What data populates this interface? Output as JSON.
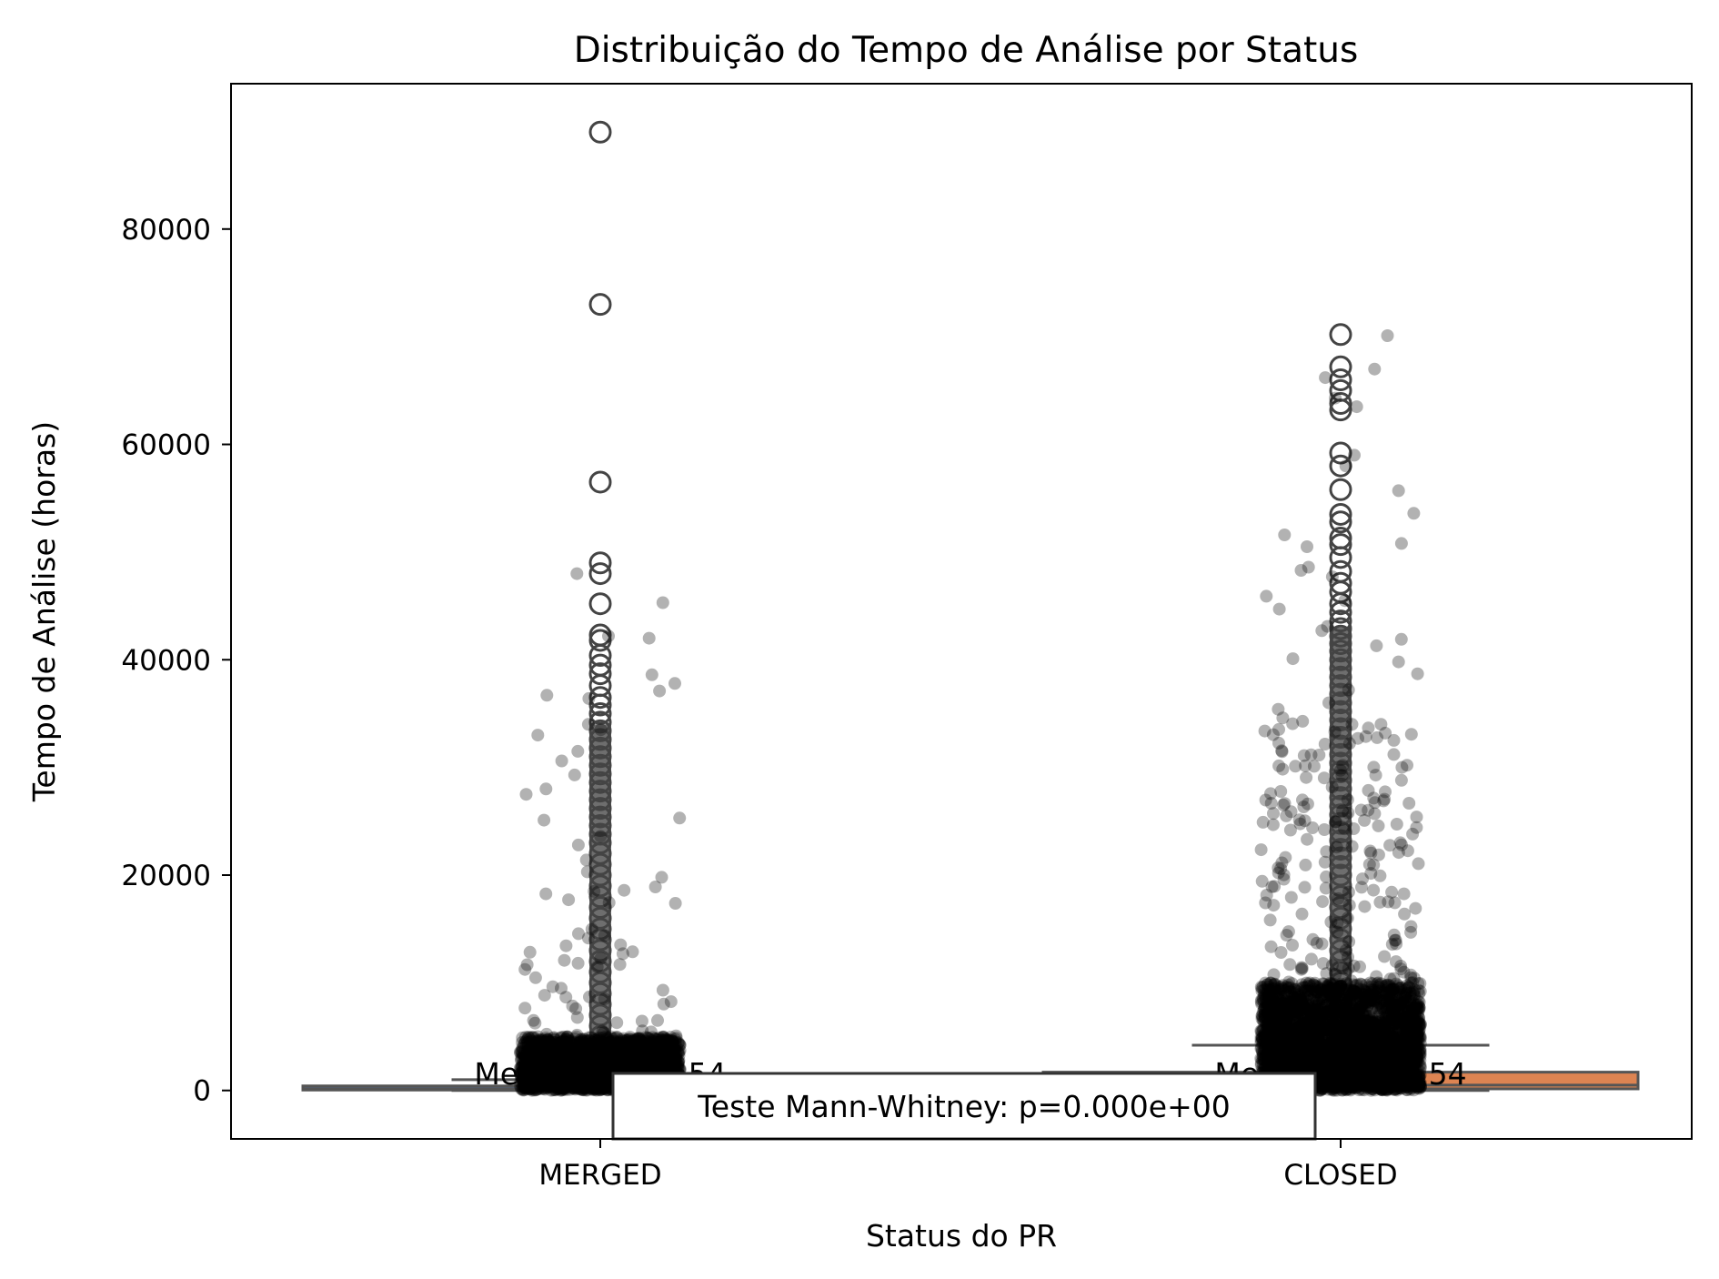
{
  "chart_data": {
    "type": "box",
    "title": "Distribuição do Tempo de Análise por Status",
    "xlabel": "Status do PR",
    "ylabel": "Tempo de Análise (horas)",
    "categories": [
      "MERGED",
      "CLOSED"
    ],
    "ylim": [
      -4500,
      93500
    ],
    "yticks": [
      0,
      20000,
      40000,
      60000,
      80000
    ],
    "grid": false,
    "box_colors": [
      "#4c72b0",
      "#dd8452"
    ],
    "boxes": [
      {
        "category": "MERGED",
        "q1": 40,
        "median": 160,
        "q3": 420,
        "whisker_low": 0,
        "whisker_high": 1000,
        "outliers": [
          89000,
          73000,
          56500,
          49000,
          48000,
          45200,
          42300,
          41800,
          40400,
          39500,
          38700,
          37600,
          36500,
          35800,
          35000,
          34200,
          33400,
          32600,
          31800,
          31000,
          30200,
          29400,
          28600,
          27800,
          27000,
          26200,
          25400,
          24600,
          23800,
          23000,
          22000,
          21000,
          20000,
          19000,
          18000,
          17000,
          16000,
          15000,
          14000,
          13000,
          12000,
          11000,
          10000,
          9000,
          8000,
          7000,
          6000,
          5000,
          4000,
          3000,
          2000,
          1500
        ]
      },
      {
        "category": "CLOSED",
        "q1": 150,
        "median": 500,
        "q3": 1700,
        "whisker_low": 0,
        "whisker_high": 4200,
        "outliers": [
          70200,
          67200,
          66000,
          65000,
          63800,
          63200,
          59200,
          58000,
          55800,
          53500,
          52800,
          51300,
          50700,
          49500,
          48200,
          47100,
          46300,
          45200,
          44400,
          43600,
          42900,
          42200,
          41500,
          40800,
          40000,
          39200,
          38400,
          37600,
          36800,
          36000,
          35200,
          34400,
          33600,
          32800,
          32000,
          31200,
          30400,
          29600,
          28800,
          28000,
          27200,
          26400,
          25600,
          24800,
          24000,
          23200,
          22400,
          21600,
          20800,
          20000,
          19000,
          18000,
          17000,
          16000,
          15000,
          14000,
          13000,
          12000,
          11000,
          10000,
          9000,
          8000,
          7000,
          6000,
          5000
        ]
      }
    ],
    "jitter_points": {
      "color": "#000000",
      "opacity": 0.3,
      "MERGED": {
        "count_approx": 2500,
        "extremes": [
          48000,
          45300,
          42200,
          42000,
          38600,
          37800,
          36700,
          37100,
          36400,
          34000,
          33500,
          33000,
          31500,
          30600,
          29300,
          28000,
          27500,
          25300,
          25100,
          23600,
          22800,
          21400,
          20300,
          19800
        ]
      },
      "CLOSED": {
        "count_approx": 3500,
        "extremes": [
          70100,
          67000,
          66200,
          64300,
          63500,
          59000,
          58000,
          55700,
          53600,
          51600,
          50800,
          50500,
          48600,
          48300,
          47700,
          45900,
          45500,
          44700,
          43100,
          42700,
          41900,
          41300,
          40100,
          39800,
          38700,
          37200,
          36000,
          35400,
          34600,
          33300,
          32700,
          31100,
          30100,
          28800,
          27000,
          25500,
          24300,
          22600,
          21000
        ]
      }
    },
    "annotations": {
      "medians": [
        "Mediana: 156.54",
        "Mediana: 500.54"
      ],
      "test": "Teste Mann-Whitney: p=0.000e+00"
    }
  }
}
